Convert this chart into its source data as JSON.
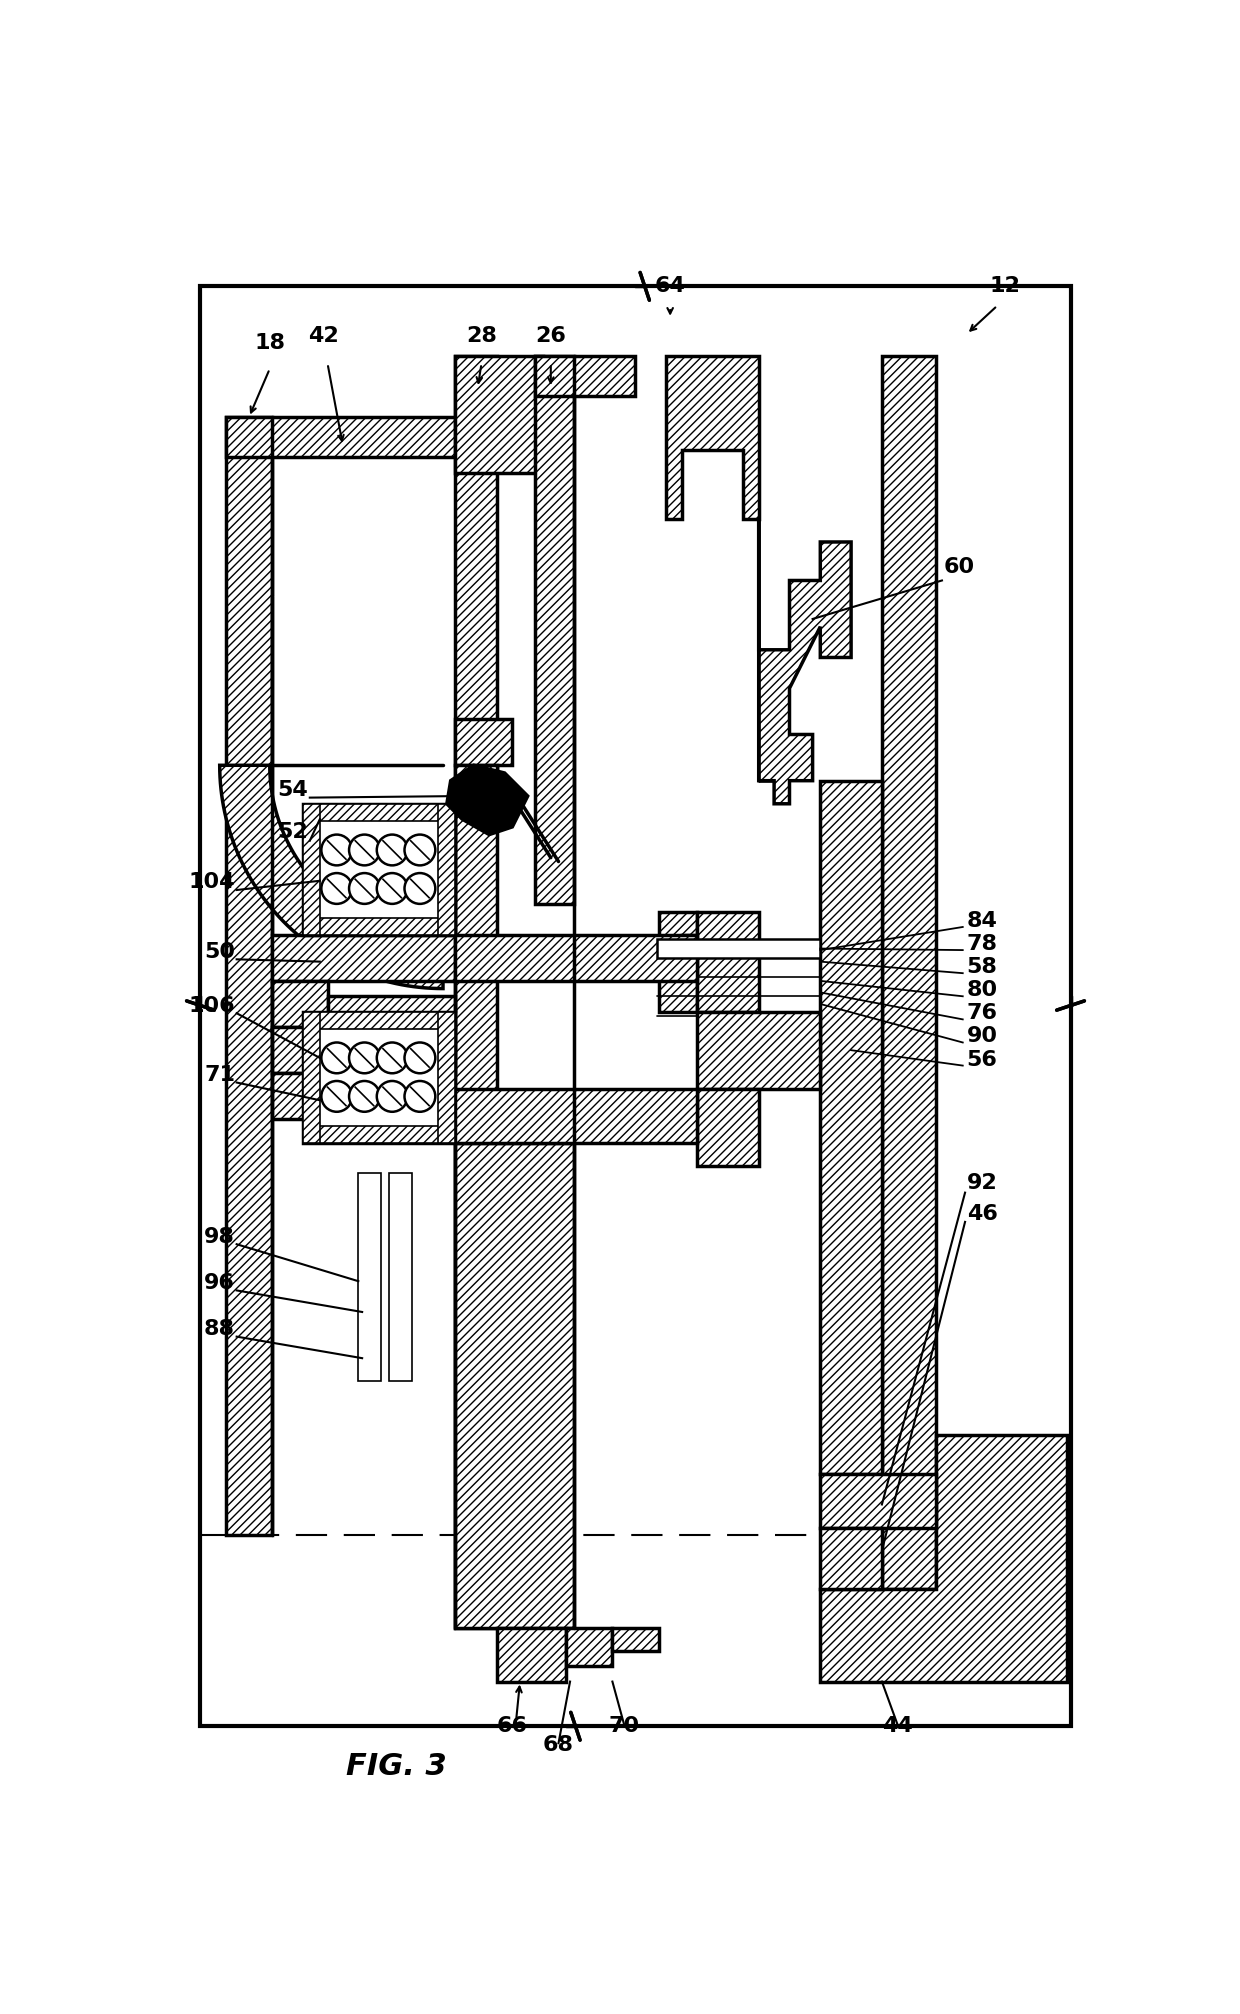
{
  "figsize": [
    12.4,
    20.14
  ],
  "dpi": 100,
  "bg": "#ffffff",
  "lw_main": 2.5,
  "lw_med": 1.8,
  "lw_thin": 1.2,
  "hatch": "////",
  "fig_label": "FIG. 3",
  "label_fontsize": 16,
  "figlabel_fontsize": 22
}
